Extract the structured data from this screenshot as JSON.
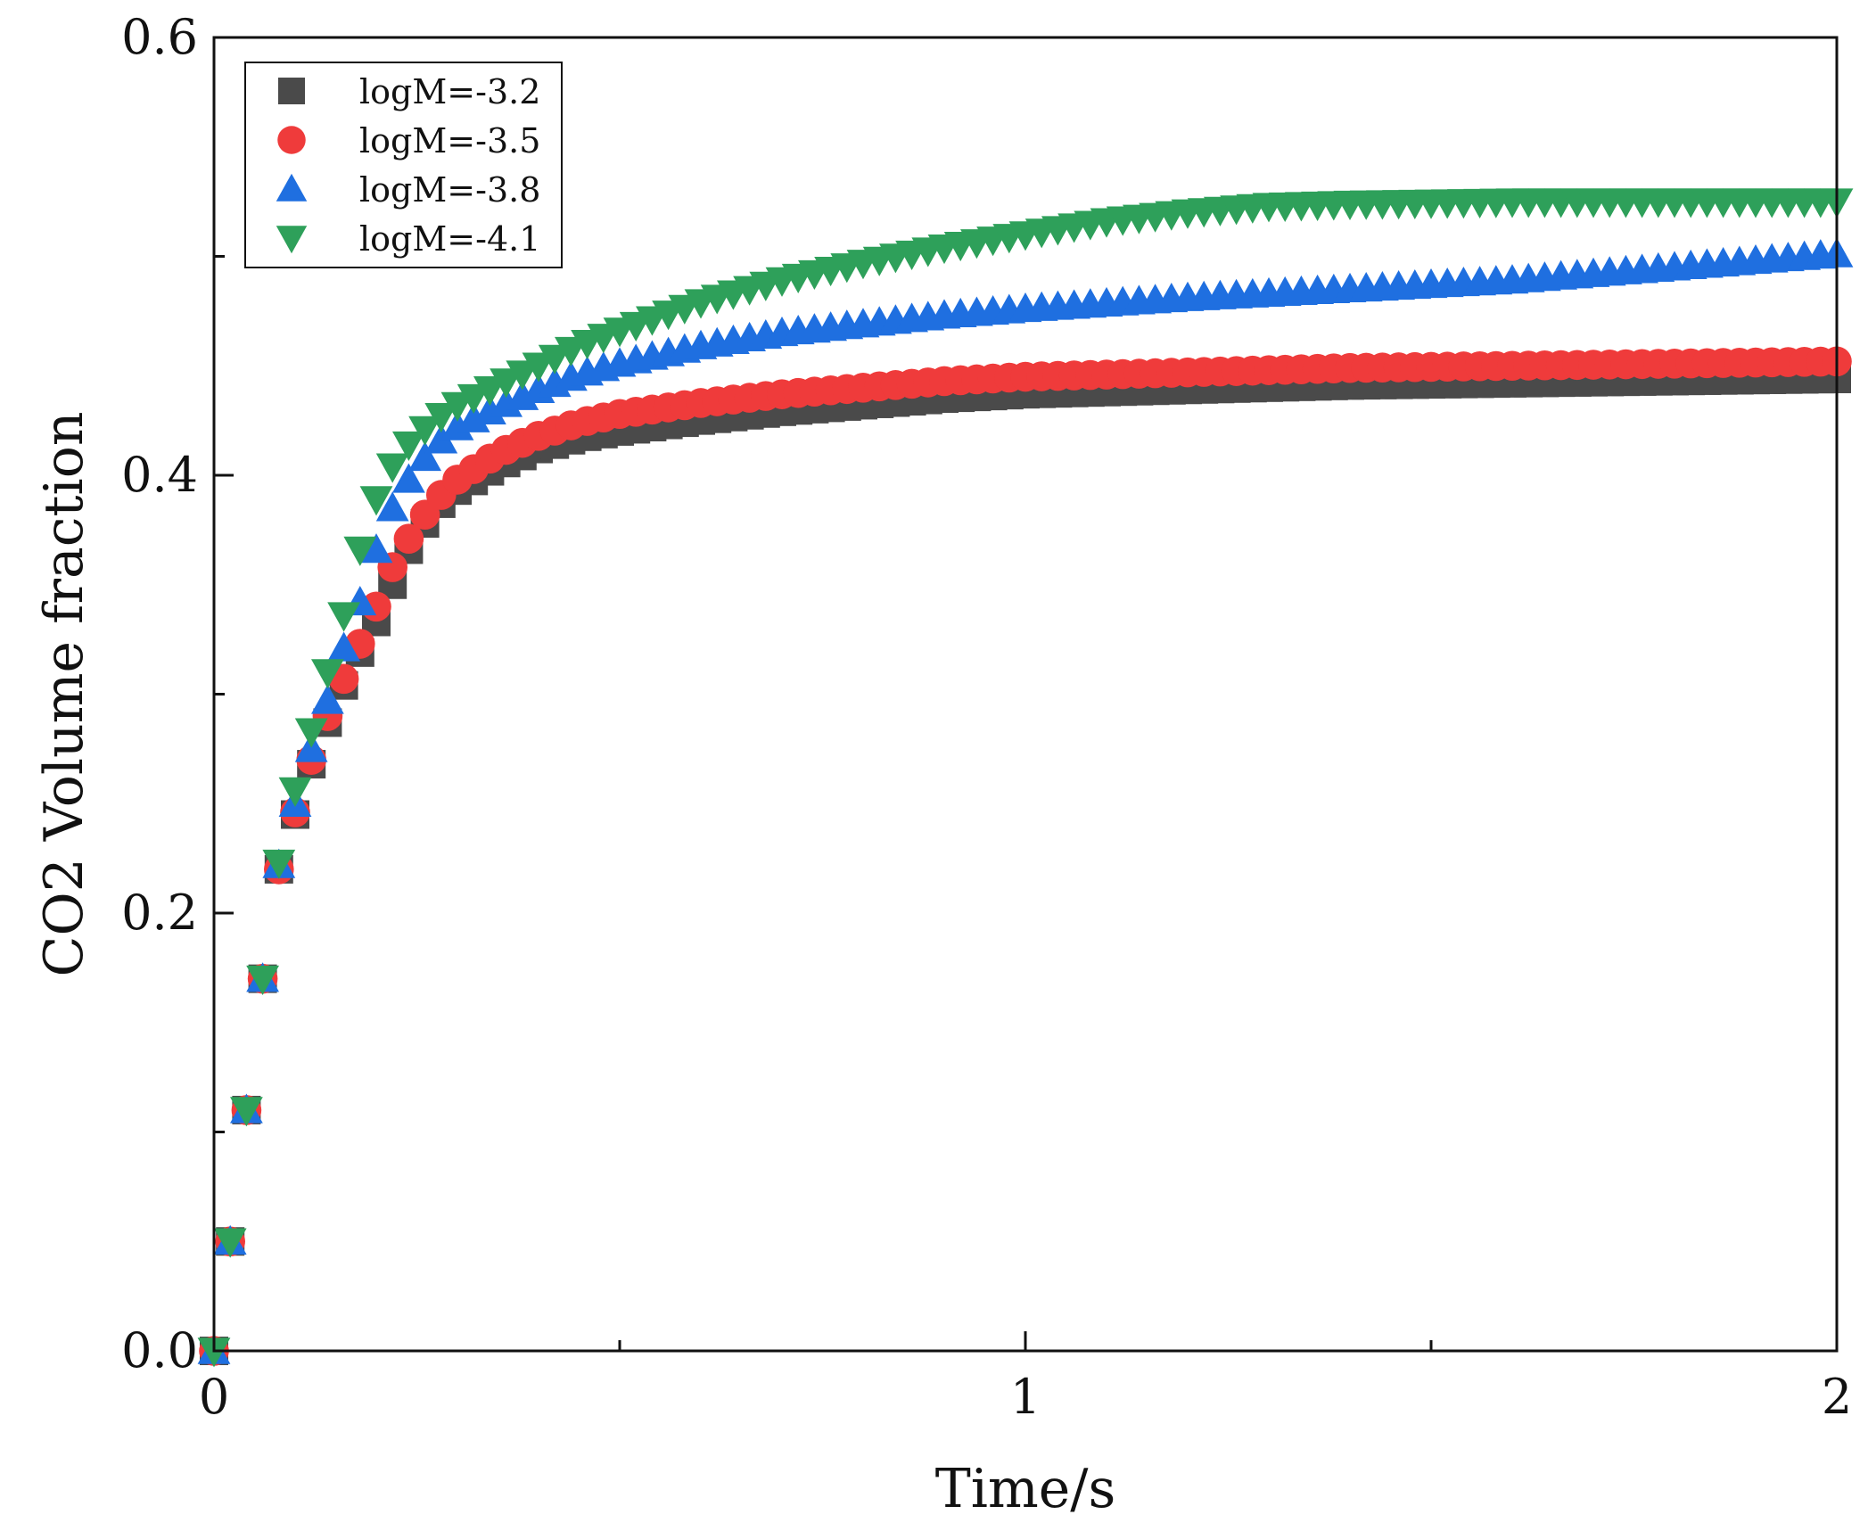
{
  "chart_data": {
    "type": "scatter",
    "title": "",
    "xlabel": "Time/s",
    "ylabel": "CO2 Volume fraction",
    "xlim": [
      0,
      2
    ],
    "ylim": [
      0,
      0.6
    ],
    "x_major_ticks": [
      0,
      1,
      2
    ],
    "x_tick_labels": [
      "0",
      "1",
      "2"
    ],
    "x_minor_ticks": [
      0.5,
      1.5
    ],
    "y_major_ticks": [
      0,
      0.2,
      0.4,
      0.6
    ],
    "y_tick_labels": [
      "0.0",
      "0.2",
      "0.4",
      "0.6"
    ],
    "y_minor_ticks": [
      0.1,
      0.3,
      0.5
    ],
    "grid": false,
    "legend_position": "top-left",
    "marker_interval_s": 0.02,
    "series": [
      {
        "name": "logM=-3.2",
        "marker": "square",
        "color": "#4a4a4a",
        "curve": [
          [
            0,
            0
          ],
          [
            0.02,
            0.05
          ],
          [
            0.04,
            0.11
          ],
          [
            0.06,
            0.17
          ],
          [
            0.08,
            0.22
          ],
          [
            0.1,
            0.245
          ],
          [
            0.12,
            0.268
          ],
          [
            0.14,
            0.287
          ],
          [
            0.16,
            0.304
          ],
          [
            0.18,
            0.319
          ],
          [
            0.2,
            0.333
          ],
          [
            0.22,
            0.35
          ],
          [
            0.24,
            0.366
          ],
          [
            0.26,
            0.378
          ],
          [
            0.28,
            0.387
          ],
          [
            0.3,
            0.393
          ],
          [
            0.35,
            0.404
          ],
          [
            0.4,
            0.412
          ],
          [
            0.45,
            0.417
          ],
          [
            0.5,
            0.42
          ],
          [
            0.6,
            0.425
          ],
          [
            0.7,
            0.429
          ],
          [
            0.8,
            0.432
          ],
          [
            0.9,
            0.435
          ],
          [
            1.0,
            0.437
          ],
          [
            1.2,
            0.439
          ],
          [
            1.4,
            0.441
          ],
          [
            1.6,
            0.442
          ],
          [
            1.8,
            0.443
          ],
          [
            2.0,
            0.444
          ]
        ]
      },
      {
        "name": "logM=-3.5",
        "marker": "circle",
        "color": "#ef3b3b",
        "curve": [
          [
            0,
            0
          ],
          [
            0.02,
            0.05
          ],
          [
            0.04,
            0.11
          ],
          [
            0.06,
            0.17
          ],
          [
            0.08,
            0.22
          ],
          [
            0.1,
            0.246
          ],
          [
            0.12,
            0.27
          ],
          [
            0.14,
            0.29
          ],
          [
            0.16,
            0.307
          ],
          [
            0.18,
            0.323
          ],
          [
            0.2,
            0.34
          ],
          [
            0.22,
            0.358
          ],
          [
            0.24,
            0.371
          ],
          [
            0.26,
            0.382
          ],
          [
            0.28,
            0.391
          ],
          [
            0.3,
            0.398
          ],
          [
            0.35,
            0.41
          ],
          [
            0.4,
            0.418
          ],
          [
            0.45,
            0.424
          ],
          [
            0.5,
            0.428
          ],
          [
            0.6,
            0.433
          ],
          [
            0.7,
            0.437
          ],
          [
            0.8,
            0.44
          ],
          [
            0.9,
            0.443
          ],
          [
            1.0,
            0.445
          ],
          [
            1.2,
            0.447
          ],
          [
            1.4,
            0.449
          ],
          [
            1.6,
            0.45
          ],
          [
            1.8,
            0.451
          ],
          [
            2.0,
            0.452
          ]
        ]
      },
      {
        "name": "logM=-3.8",
        "marker": "triangle-up",
        "color": "#1f6fe0",
        "curve": [
          [
            0,
            0
          ],
          [
            0.02,
            0.05
          ],
          [
            0.04,
            0.11
          ],
          [
            0.06,
            0.17
          ],
          [
            0.08,
            0.222
          ],
          [
            0.1,
            0.25
          ],
          [
            0.12,
            0.275
          ],
          [
            0.14,
            0.297
          ],
          [
            0.16,
            0.321
          ],
          [
            0.18,
            0.342
          ],
          [
            0.2,
            0.366
          ],
          [
            0.22,
            0.385
          ],
          [
            0.24,
            0.398
          ],
          [
            0.26,
            0.408
          ],
          [
            0.28,
            0.416
          ],
          [
            0.3,
            0.422
          ],
          [
            0.35,
            0.431
          ],
          [
            0.4,
            0.439
          ],
          [
            0.45,
            0.446
          ],
          [
            0.5,
            0.451
          ],
          [
            0.6,
            0.459
          ],
          [
            0.7,
            0.465
          ],
          [
            0.8,
            0.469
          ],
          [
            0.9,
            0.473
          ],
          [
            1.0,
            0.476
          ],
          [
            1.2,
            0.481
          ],
          [
            1.4,
            0.485
          ],
          [
            1.6,
            0.489
          ],
          [
            1.8,
            0.495
          ],
          [
            2.0,
            0.501
          ]
        ]
      },
      {
        "name": "logM=-4.1",
        "marker": "triangle-down",
        "color": "#2ea05a",
        "curve": [
          [
            0,
            0
          ],
          [
            0.02,
            0.05
          ],
          [
            0.04,
            0.11
          ],
          [
            0.06,
            0.17
          ],
          [
            0.08,
            0.223
          ],
          [
            0.1,
            0.256
          ],
          [
            0.12,
            0.283
          ],
          [
            0.14,
            0.31
          ],
          [
            0.16,
            0.336
          ],
          [
            0.18,
            0.366
          ],
          [
            0.2,
            0.389
          ],
          [
            0.22,
            0.404
          ],
          [
            0.24,
            0.414
          ],
          [
            0.26,
            0.421
          ],
          [
            0.28,
            0.427
          ],
          [
            0.3,
            0.432
          ],
          [
            0.35,
            0.441
          ],
          [
            0.4,
            0.45
          ],
          [
            0.45,
            0.459
          ],
          [
            0.5,
            0.466
          ],
          [
            0.6,
            0.479
          ],
          [
            0.7,
            0.489
          ],
          [
            0.8,
            0.497
          ],
          [
            0.9,
            0.504
          ],
          [
            1.0,
            0.51
          ],
          [
            1.1,
            0.516
          ],
          [
            1.2,
            0.52
          ],
          [
            1.3,
            0.523
          ],
          [
            1.4,
            0.524
          ],
          [
            1.6,
            0.525
          ],
          [
            1.8,
            0.525
          ],
          [
            2.0,
            0.525
          ]
        ]
      }
    ]
  }
}
